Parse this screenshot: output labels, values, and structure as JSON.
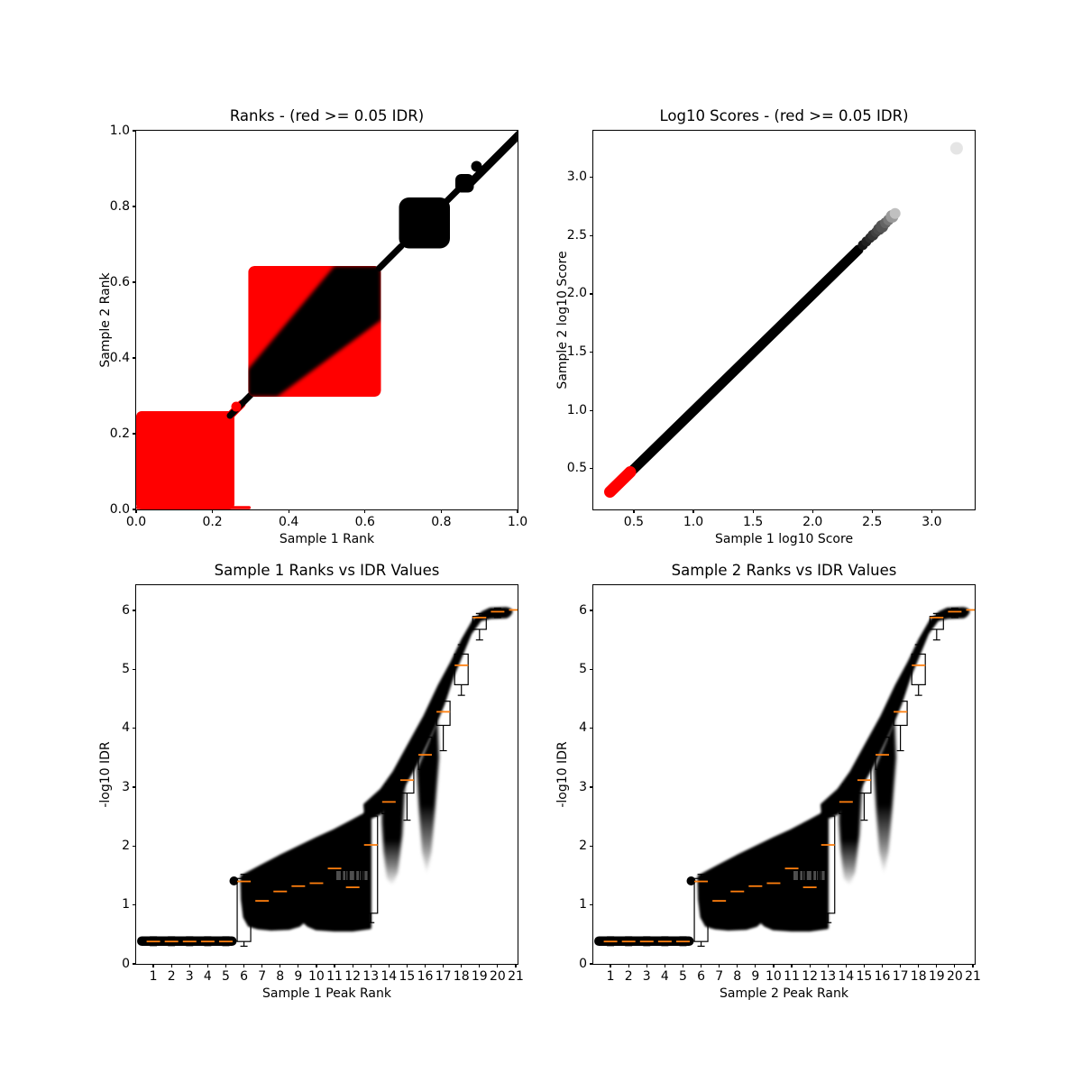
{
  "figure": {
    "kind": "IDR diagnostic plots, 2x2 matplotlib-style figure",
    "background": "#ffffff"
  },
  "colors": {
    "significant_black": "#000000",
    "insignificant_red": "#ff0000",
    "median_orange": "#ff7f0e",
    "frame": "#000000",
    "outlier_gray": "#e2e2e2"
  },
  "chart_data": [
    {
      "type": "scatter",
      "title": "Ranks - (red >= 0.05 IDR)",
      "xlabel": "Sample 1 Rank",
      "ylabel": "Sample 2 Rank",
      "xlim": [
        0,
        1
      ],
      "ylim": [
        0,
        1
      ],
      "grid": false,
      "xticks": {
        "values": [
          0,
          0.2,
          0.4,
          0.6,
          0.8,
          1.0
        ],
        "labels": [
          "0.0",
          "0.2",
          "0.4",
          "0.6",
          "0.8",
          "1.0"
        ]
      },
      "yticks": {
        "values": [
          0,
          0.2,
          0.4,
          0.6,
          0.8,
          1.0
        ],
        "labels": [
          "0.0",
          "0.2",
          "0.4",
          "0.6",
          "0.8",
          "1.0"
        ]
      },
      "regions": [
        {
          "color": "red",
          "meaning": "IDR >= 0.05",
          "shape": "solid block",
          "x_range": [
            0.0,
            0.26
          ],
          "y_range": [
            0.0,
            0.26
          ]
        },
        {
          "color": "red",
          "meaning": "IDR >= 0.05",
          "shape": "block crossed by black diagonal band",
          "x_range": [
            0.295,
            0.645
          ],
          "y_range": [
            0.295,
            0.645
          ]
        },
        {
          "color": "black",
          "meaning": "IDR < 0.05",
          "shape": "diagonal band along y=x from 0.26 to 1.0 with square cluster 0.69-0.82, small cluster 0.845-0.885, dot near 0.90"
        }
      ]
    },
    {
      "type": "scatter",
      "title": "Log10 Scores - (red >= 0.05 IDR)",
      "xlabel": "Sample 1 log10 Score",
      "ylabel": "Sample 2 log10 Score",
      "xlim": [
        0.16,
        3.36
      ],
      "ylim": [
        0.15,
        3.4
      ],
      "grid": false,
      "xticks": {
        "values": [
          0.5,
          1.0,
          1.5,
          2.0,
          2.5,
          3.0
        ],
        "labels": [
          "0.5",
          "1.0",
          "1.5",
          "2.0",
          "2.5",
          "3.0"
        ]
      },
      "yticks": {
        "values": [
          0.5,
          1.0,
          1.5,
          2.0,
          2.5,
          3.0
        ],
        "labels": [
          "0.5",
          "1.0",
          "1.5",
          "2.0",
          "2.5",
          "3.0"
        ]
      },
      "diagonal_segments": [
        {
          "color": "red",
          "from": 0.3,
          "to": 0.47
        },
        {
          "color": "black",
          "from": 0.45,
          "to": 2.4
        },
        {
          "color": "gray-fading",
          "from": 2.4,
          "to": 2.72
        }
      ],
      "outlier_point": {
        "x": 3.2,
        "y": 3.25,
        "color": "light gray"
      }
    },
    {
      "type": "scatter",
      "title": "Sample 1 Ranks vs IDR Values",
      "xlabel": "Sample 1 Peak Rank",
      "ylabel": "-log10 IDR",
      "xlim": [
        0.05,
        21.1
      ],
      "ylim": [
        0,
        6.43
      ],
      "grid": false,
      "xticks": {
        "values": [
          1,
          2,
          3,
          4,
          5,
          6,
          7,
          8,
          9,
          10,
          11,
          12,
          13,
          14,
          15,
          16,
          17,
          18,
          19,
          20,
          21
        ],
        "labels": [
          "1",
          "2",
          "3",
          "4",
          "5",
          "6",
          "7",
          "8",
          "9",
          "10",
          "11",
          "12",
          "13",
          "14",
          "15",
          "16",
          "17",
          "18",
          "19",
          "20",
          "21"
        ]
      },
      "yticks": {
        "values": [
          0,
          1,
          2,
          3,
          4,
          5,
          6
        ],
        "labels": [
          "0",
          "1",
          "2",
          "3",
          "4",
          "5",
          "6"
        ]
      },
      "scatter_summary": "dense black mass: flat capsule at -log10 IDR ~0.38 for ranks 1-5.5; wedge rising 1.5->2.6 over ranks 6-13; two fading lobes at ranks 14 and 16; thick band climbing to plateau at 6.0 over ranks 17-21",
      "boxplots": [
        {
          "rank": 1,
          "median": 0.38,
          "q1": 0.34,
          "q3": 0.43,
          "whisker_low": 0.31,
          "whisker_high": 0.46
        },
        {
          "rank": 2,
          "median": 0.38,
          "q1": 0.34,
          "q3": 0.43,
          "whisker_low": 0.31,
          "whisker_high": 0.46
        },
        {
          "rank": 3,
          "median": 0.38,
          "q1": 0.34,
          "q3": 0.43,
          "whisker_low": 0.31,
          "whisker_high": 0.46
        },
        {
          "rank": 4,
          "median": 0.38,
          "q1": 0.34,
          "q3": 0.43,
          "whisker_low": 0.31,
          "whisker_high": 0.46
        },
        {
          "rank": 5,
          "median": 0.38,
          "q1": 0.34,
          "q3": 0.43,
          "whisker_low": 0.31,
          "whisker_high": 0.46
        },
        {
          "rank": 6,
          "median": 1.4,
          "q1": 0.38,
          "q3": 1.45,
          "whisker_low": 0.3,
          "whisker_high": 1.52
        },
        {
          "rank": 7,
          "median": 1.07,
          "q1": 0.9,
          "q3": 1.4,
          "whisker_low": 0.66,
          "whisker_high": 1.55
        },
        {
          "rank": 8,
          "median": 1.23,
          "q1": 0.95,
          "q3": 1.5,
          "whisker_low": 0.7,
          "whisker_high": 1.62
        },
        {
          "rank": 9,
          "median": 1.32,
          "q1": 0.95,
          "q3": 1.52,
          "whisker_low": 0.74,
          "whisker_high": 1.7
        },
        {
          "rank": 10,
          "median": 1.37,
          "q1": 1.05,
          "q3": 1.6,
          "whisker_low": 0.8,
          "whisker_high": 1.75
        },
        {
          "rank": 11,
          "median": 1.62,
          "q1": 1.2,
          "q3": 1.8,
          "whisker_low": 0.95,
          "whisker_high": 1.95
        },
        {
          "rank": 12,
          "median": 1.3,
          "q1": 1.05,
          "q3": 1.65,
          "whisker_low": 0.8,
          "whisker_high": 1.85
        },
        {
          "rank": 13,
          "median": 2.02,
          "q1": 0.86,
          "q3": 2.51,
          "whisker_low": 0.7,
          "whisker_high": 2.56
        },
        {
          "rank": 14,
          "median": 2.75,
          "q1": 2.55,
          "q3": 2.95,
          "whisker_low": 2.4,
          "whisker_high": 3.05
        },
        {
          "rank": 15,
          "median": 3.12,
          "q1": 2.9,
          "q3": 3.35,
          "whisker_low": 2.44,
          "whisker_high": 3.45
        },
        {
          "rank": 16,
          "median": 3.55,
          "q1": 3.3,
          "q3": 3.85,
          "whisker_low": 3.1,
          "whisker_high": 4.0
        },
        {
          "rank": 17,
          "median": 4.28,
          "q1": 4.05,
          "q3": 4.46,
          "whisker_low": 3.62,
          "whisker_high": 4.6
        },
        {
          "rank": 18,
          "median": 5.07,
          "q1": 4.74,
          "q3": 5.26,
          "whisker_low": 4.56,
          "whisker_high": 5.42
        },
        {
          "rank": 19,
          "median": 5.88,
          "q1": 5.68,
          "q3": 5.9,
          "whisker_low": 5.5,
          "whisker_high": 5.95
        },
        {
          "rank": 20,
          "median": 5.98,
          "q1": 5.92,
          "q3": 6.02,
          "whisker_low": 5.88,
          "whisker_high": 6.04
        },
        {
          "rank": 21,
          "median": 6.01,
          "q1": null,
          "q3": null,
          "whisker_low": null,
          "whisker_high": null
        }
      ]
    },
    {
      "type": "scatter",
      "title": "Sample 2 Ranks vs IDR Values",
      "xlabel": "Sample 2 Peak Rank",
      "ylabel": "-log10 IDR",
      "xlim": [
        0.05,
        21.1
      ],
      "ylim": [
        0,
        6.43
      ],
      "grid": false,
      "xticks": {
        "values": [
          1,
          2,
          3,
          4,
          5,
          6,
          7,
          8,
          9,
          10,
          11,
          12,
          13,
          14,
          15,
          16,
          17,
          18,
          19,
          20,
          21
        ],
        "labels": [
          "1",
          "2",
          "3",
          "4",
          "5",
          "6",
          "7",
          "8",
          "9",
          "10",
          "11",
          "12",
          "13",
          "14",
          "15",
          "16",
          "17",
          "18",
          "19",
          "20",
          "21"
        ]
      },
      "yticks": {
        "values": [
          0,
          1,
          2,
          3,
          4,
          5,
          6
        ],
        "labels": [
          "0",
          "1",
          "2",
          "3",
          "4",
          "5",
          "6"
        ]
      },
      "scatter_summary": "dense black mass: flat capsule at -log10 IDR ~0.38 for ranks 1-5.5; wedge rising 1.5->2.6 over ranks 6-13; two fading lobes at ranks 14 and 16; thick band climbing to plateau at 6.0 over ranks 17-21",
      "boxplots": [
        {
          "rank": 1,
          "median": 0.38,
          "q1": 0.34,
          "q3": 0.43,
          "whisker_low": 0.31,
          "whisker_high": 0.46
        },
        {
          "rank": 2,
          "median": 0.38,
          "q1": 0.34,
          "q3": 0.43,
          "whisker_low": 0.31,
          "whisker_high": 0.46
        },
        {
          "rank": 3,
          "median": 0.38,
          "q1": 0.34,
          "q3": 0.43,
          "whisker_low": 0.31,
          "whisker_high": 0.46
        },
        {
          "rank": 4,
          "median": 0.38,
          "q1": 0.34,
          "q3": 0.43,
          "whisker_low": 0.31,
          "whisker_high": 0.46
        },
        {
          "rank": 5,
          "median": 0.38,
          "q1": 0.34,
          "q3": 0.43,
          "whisker_low": 0.31,
          "whisker_high": 0.46
        },
        {
          "rank": 6,
          "median": 1.4,
          "q1": 0.38,
          "q3": 1.45,
          "whisker_low": 0.3,
          "whisker_high": 1.52
        },
        {
          "rank": 7,
          "median": 1.07,
          "q1": 0.9,
          "q3": 1.4,
          "whisker_low": 0.66,
          "whisker_high": 1.55
        },
        {
          "rank": 8,
          "median": 1.23,
          "q1": 0.95,
          "q3": 1.5,
          "whisker_low": 0.7,
          "whisker_high": 1.62
        },
        {
          "rank": 9,
          "median": 1.32,
          "q1": 0.95,
          "q3": 1.52,
          "whisker_low": 0.74,
          "whisker_high": 1.7
        },
        {
          "rank": 10,
          "median": 1.37,
          "q1": 1.05,
          "q3": 1.6,
          "whisker_low": 0.8,
          "whisker_high": 1.75
        },
        {
          "rank": 11,
          "median": 1.62,
          "q1": 1.2,
          "q3": 1.8,
          "whisker_low": 0.95,
          "whisker_high": 1.95
        },
        {
          "rank": 12,
          "median": 1.3,
          "q1": 1.05,
          "q3": 1.65,
          "whisker_low": 0.8,
          "whisker_high": 1.85
        },
        {
          "rank": 13,
          "median": 2.02,
          "q1": 0.86,
          "q3": 2.51,
          "whisker_low": 0.7,
          "whisker_high": 2.56
        },
        {
          "rank": 14,
          "median": 2.75,
          "q1": 2.55,
          "q3": 2.95,
          "whisker_low": 2.4,
          "whisker_high": 3.05
        },
        {
          "rank": 15,
          "median": 3.12,
          "q1": 2.9,
          "q3": 3.35,
          "whisker_low": 2.44,
          "whisker_high": 3.45
        },
        {
          "rank": 16,
          "median": 3.55,
          "q1": 3.3,
          "q3": 3.85,
          "whisker_low": 3.1,
          "whisker_high": 4.0
        },
        {
          "rank": 17,
          "median": 4.28,
          "q1": 4.05,
          "q3": 4.46,
          "whisker_low": 3.62,
          "whisker_high": 4.6
        },
        {
          "rank": 18,
          "median": 5.07,
          "q1": 4.74,
          "q3": 5.26,
          "whisker_low": 4.56,
          "whisker_high": 5.42
        },
        {
          "rank": 19,
          "median": 5.88,
          "q1": 5.68,
          "q3": 5.9,
          "whisker_low": 5.5,
          "whisker_high": 5.95
        },
        {
          "rank": 20,
          "median": 5.98,
          "q1": 5.92,
          "q3": 6.02,
          "whisker_low": 5.88,
          "whisker_high": 6.04
        },
        {
          "rank": 21,
          "median": 6.01,
          "q1": null,
          "q3": null,
          "whisker_low": null,
          "whisker_high": null
        }
      ]
    }
  ]
}
